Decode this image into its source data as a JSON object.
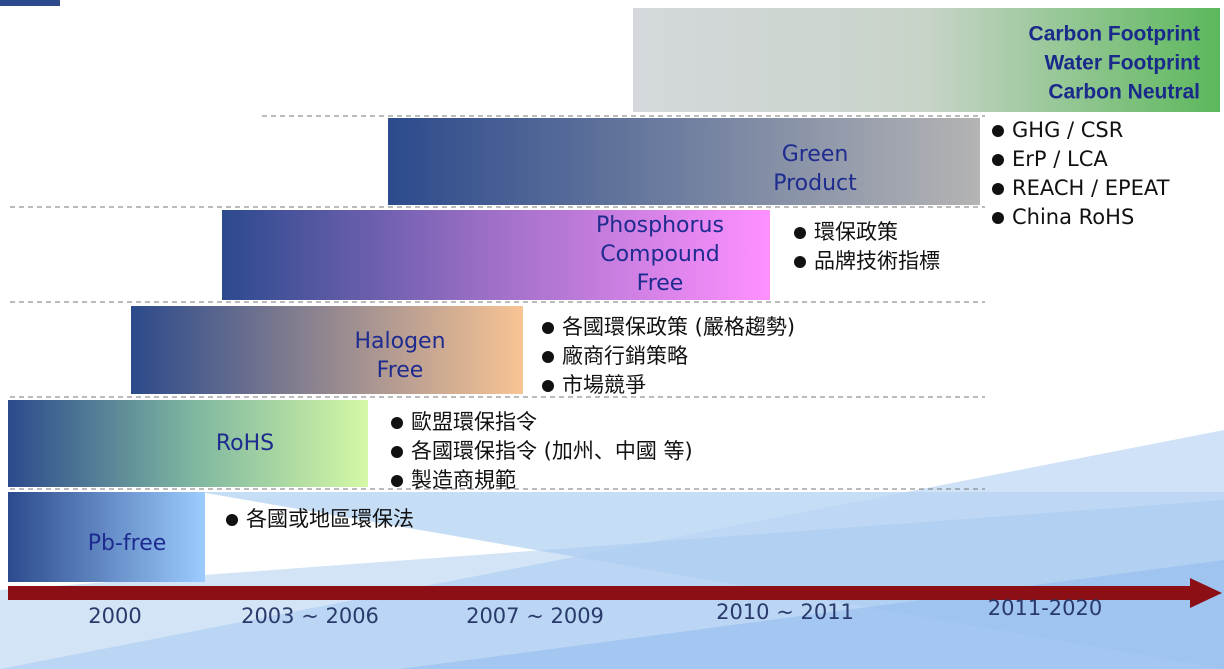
{
  "top": {
    "lines": [
      "Carbon Footprint",
      "Water Footprint",
      "Carbon Neutral"
    ]
  },
  "stages": [
    {
      "label": [
        "Pb-free"
      ],
      "bullets": [
        "各國或地區環保法"
      ]
    },
    {
      "label": [
        "RoHS"
      ],
      "bullets": [
        "歐盟環保指令",
        "各國環保指令 (加州、中國 等)",
        "製造商規範"
      ]
    },
    {
      "label": [
        "Halogen",
        "Free"
      ],
      "bullets": [
        "各國環保政策 (嚴格趨勢)",
        "廠商行銷策略",
        "市場競爭"
      ]
    },
    {
      "label": [
        "Phosphorus",
        "Compound",
        "Free"
      ],
      "bullets": [
        "環保政策",
        "品牌技術指標"
      ]
    },
    {
      "label": [
        "Green",
        "Product"
      ],
      "bullets": [
        "GHG / CSR",
        "ErP / LCA",
        "REACH / EPEAT",
        "China RoHS"
      ]
    }
  ],
  "timeline": [
    "2000",
    "2003 ~ 2006",
    "2007 ~ 2009",
    "2010 ~ 2011",
    "2011-2020"
  ]
}
